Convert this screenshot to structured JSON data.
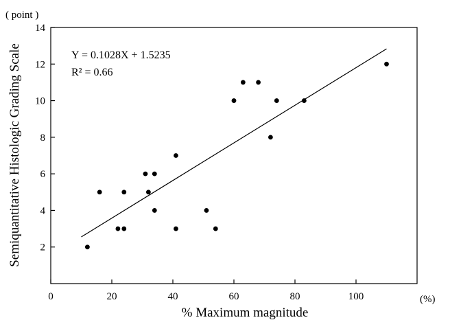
{
  "chart_data": {
    "type": "scatter",
    "title": "",
    "xlabel": "% Maximum magnitude",
    "x_unit": "(%)",
    "ylabel": "Semiquantitative Histologic Grading Scale",
    "y_unit": "( point )",
    "xlim": [
      0,
      120
    ],
    "ylim": [
      0,
      14
    ],
    "xticks": [
      0,
      20,
      40,
      60,
      80,
      100
    ],
    "yticks": [
      2,
      4,
      6,
      8,
      10,
      12,
      14
    ],
    "grid": false,
    "legend": "none",
    "points": [
      {
        "x": 12,
        "y": 2
      },
      {
        "x": 16,
        "y": 5
      },
      {
        "x": 22,
        "y": 3
      },
      {
        "x": 24,
        "y": 3
      },
      {
        "x": 24,
        "y": 5
      },
      {
        "x": 31,
        "y": 6
      },
      {
        "x": 32,
        "y": 5
      },
      {
        "x": 34,
        "y": 6
      },
      {
        "x": 34,
        "y": 4
      },
      {
        "x": 41,
        "y": 7
      },
      {
        "x": 41,
        "y": 3
      },
      {
        "x": 51,
        "y": 4
      },
      {
        "x": 54,
        "y": 3
      },
      {
        "x": 60,
        "y": 10
      },
      {
        "x": 63,
        "y": 11
      },
      {
        "x": 68,
        "y": 11
      },
      {
        "x": 72,
        "y": 8
      },
      {
        "x": 74,
        "y": 10
      },
      {
        "x": 83,
        "y": 10
      },
      {
        "x": 110,
        "y": 12
      }
    ],
    "regression": {
      "slope": 0.1028,
      "intercept": 1.5235,
      "x_range": [
        10,
        110
      ],
      "equation_text": "Y = 0.1028X + 1.5235",
      "r2_text": "R² = 0.66"
    },
    "colors": {
      "points": "#000000",
      "line": "#000000",
      "axis": "#000000"
    }
  }
}
